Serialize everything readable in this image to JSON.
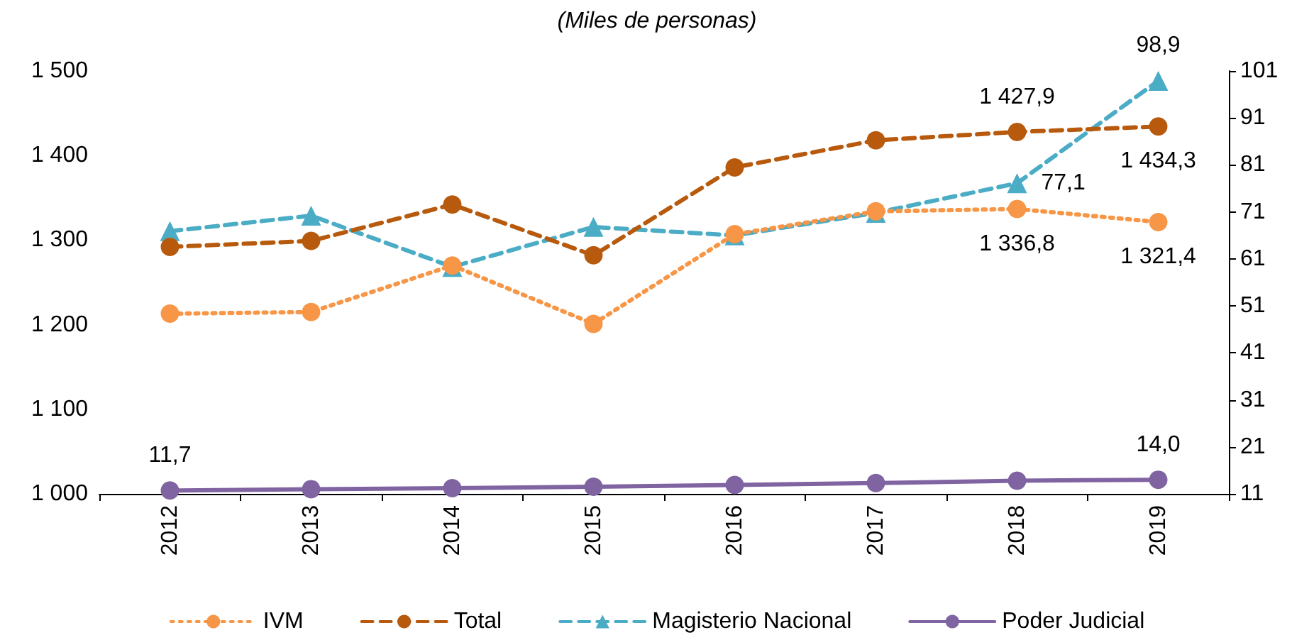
{
  "chart_data": {
    "type": "line",
    "title": "(Miles de personas)",
    "categories": [
      "2012",
      "2013",
      "2014",
      "2015",
      "2016",
      "2017",
      "2018",
      "2019"
    ],
    "series": [
      {
        "name": "IVM",
        "color": "#f79646",
        "marker": "circle",
        "line_style": "dotted",
        "values": [
          1213,
          1215,
          1270,
          1201,
          1307,
          1334,
          1336.8,
          1321.4
        ],
        "value_labels": [
          null,
          null,
          null,
          null,
          null,
          null,
          "1 336,8",
          "1 321,4"
        ]
      },
      {
        "name": "Total",
        "color": "#b85a0d",
        "marker": "circle",
        "line_style": "dashed",
        "values": [
          1292,
          1299,
          1342,
          1282,
          1386,
          1418,
          1427.9,
          1434.3
        ],
        "value_labels": [
          null,
          null,
          null,
          null,
          null,
          null,
          "1 427,9",
          "1 434,3"
        ]
      },
      {
        "name": "Magisterio Nacional",
        "color": "#4bacc6",
        "marker": "triangle",
        "line_style": "dashed",
        "axis": "y2",
        "values": [
          66.9,
          70.2,
          59.3,
          67.8,
          66.0,
          70.8,
          77.1,
          98.9
        ],
        "value_labels": [
          null,
          null,
          null,
          null,
          null,
          null,
          "77,1",
          "98,9"
        ]
      },
      {
        "name": "Poder Judicial",
        "color": "#8064a2",
        "marker": "circle",
        "line_style": "solid",
        "axis": "y2",
        "values": [
          11.7,
          12.0,
          12.2,
          12.5,
          12.9,
          13.3,
          13.8,
          14.0
        ],
        "value_labels": [
          "11,7",
          null,
          null,
          null,
          null,
          null,
          null,
          "14,0"
        ]
      }
    ],
    "ylim": [
      1000,
      1500
    ],
    "yticks": [
      {
        "value": 1000,
        "label": "1 000"
      },
      {
        "value": 1100,
        "label": "1 100"
      },
      {
        "value": 1200,
        "label": "1 200"
      },
      {
        "value": 1300,
        "label": "1 300"
      },
      {
        "value": 1400,
        "label": "1 400"
      },
      {
        "value": 1500,
        "label": "1 500"
      }
    ],
    "y2lim": [
      11,
      101
    ],
    "y2ticks": [
      11,
      21,
      31,
      41,
      51,
      61,
      71,
      81,
      91,
      101
    ],
    "grid": false,
    "legend": "bottom"
  }
}
